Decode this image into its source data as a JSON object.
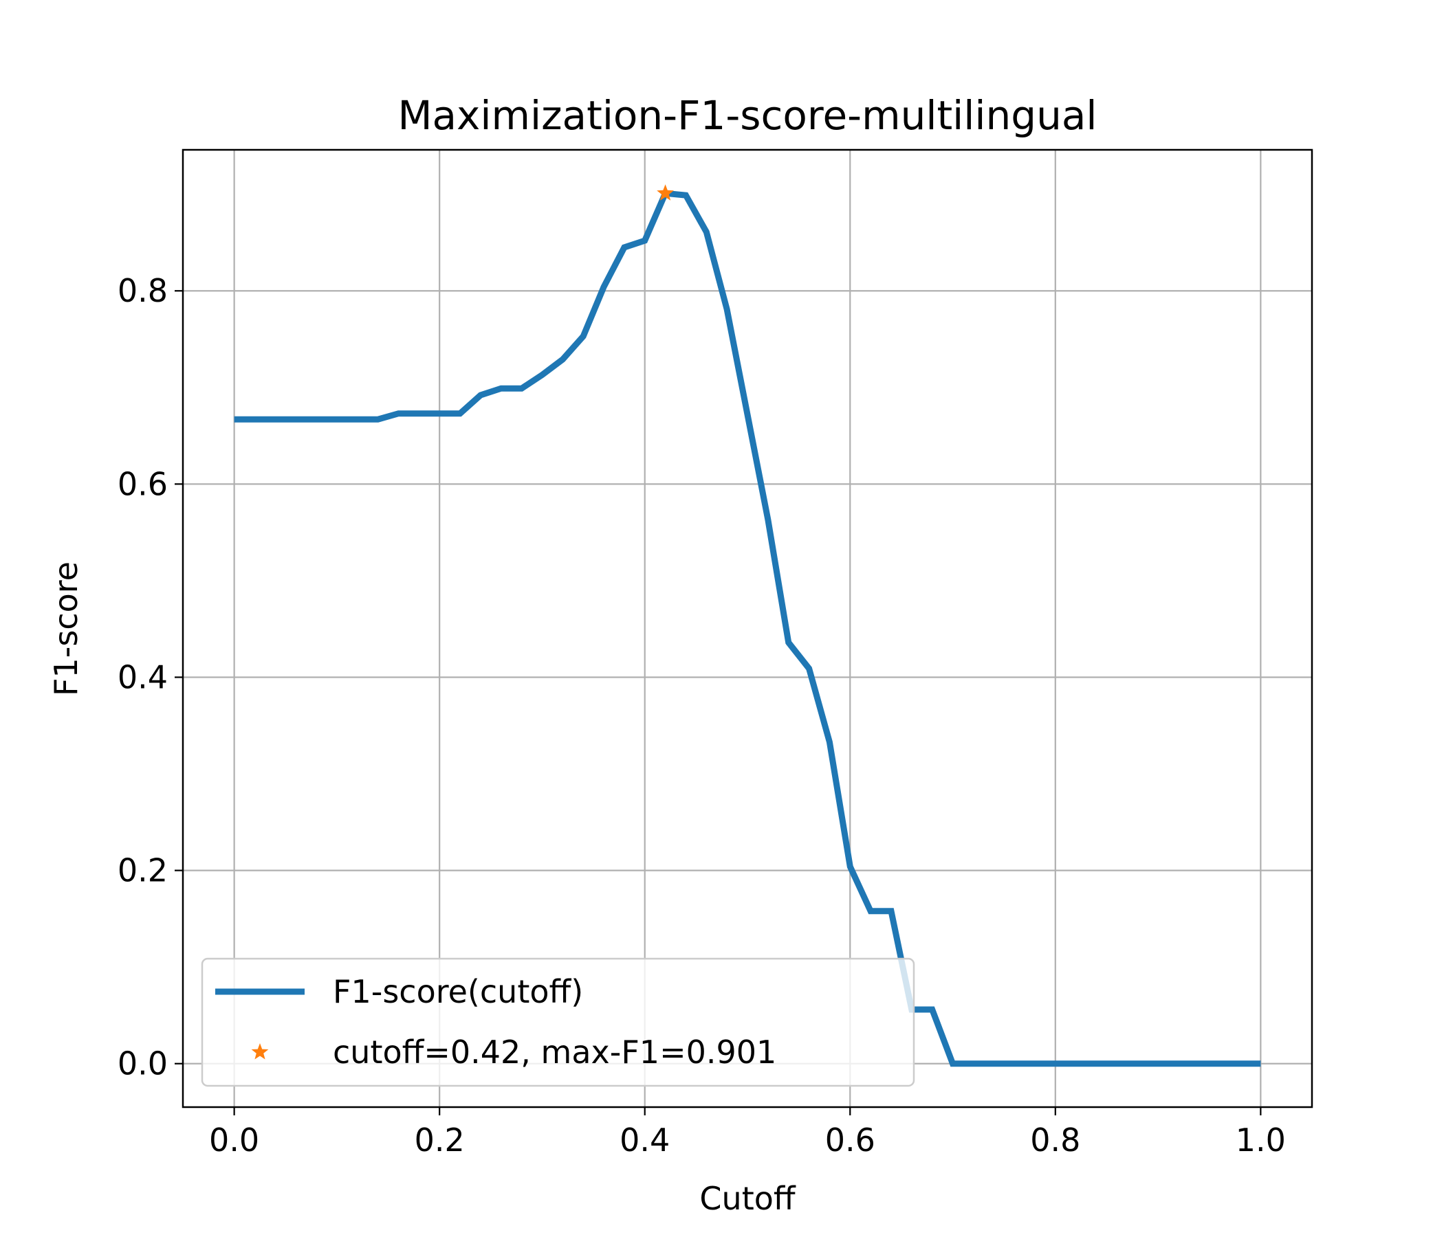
{
  "chart_data": {
    "type": "line",
    "title": "Maximization-F1-score-multilingual",
    "xlabel": "Cutoff",
    "ylabel": "F1-score",
    "xlim": [
      -0.05,
      1.05
    ],
    "ylim": [
      -0.045,
      0.946
    ],
    "xticks": [
      0.0,
      0.2,
      0.4,
      0.6,
      0.8,
      1.0
    ],
    "xtick_labels": [
      "0.0",
      "0.2",
      "0.4",
      "0.6",
      "0.8",
      "1.0"
    ],
    "yticks": [
      0.0,
      0.2,
      0.4,
      0.6,
      0.8
    ],
    "ytick_labels": [
      "0.0",
      "0.2",
      "0.4",
      "0.6",
      "0.8"
    ],
    "grid": true,
    "legend_position": "lower-left",
    "series": [
      {
        "name": "F1-score(cutoff)",
        "color": "#1f77b4",
        "x": [
          0.0,
          0.02,
          0.04,
          0.06,
          0.08,
          0.1,
          0.12,
          0.14,
          0.16,
          0.18,
          0.2,
          0.22,
          0.24,
          0.26,
          0.28,
          0.3,
          0.32,
          0.34,
          0.36,
          0.38,
          0.4,
          0.42,
          0.44,
          0.46,
          0.48,
          0.5,
          0.52,
          0.54,
          0.56,
          0.58,
          0.6,
          0.62,
          0.64,
          0.66,
          0.68,
          0.7,
          0.72,
          0.74,
          0.76,
          0.78,
          0.8,
          0.82,
          0.84,
          0.86,
          0.88,
          0.9,
          0.92,
          0.94,
          0.96,
          0.98,
          1.0
        ],
        "y": [
          0.667,
          0.667,
          0.667,
          0.667,
          0.667,
          0.667,
          0.667,
          0.667,
          0.673,
          0.673,
          0.673,
          0.673,
          0.692,
          0.699,
          0.699,
          0.713,
          0.729,
          0.753,
          0.804,
          0.845,
          0.852,
          0.901,
          0.899,
          0.861,
          0.781,
          0.672,
          0.563,
          0.436,
          0.409,
          0.333,
          0.204,
          0.158,
          0.158,
          0.056,
          0.056,
          0.0,
          0.0,
          0.0,
          0.0,
          0.0,
          0.0,
          0.0,
          0.0,
          0.0,
          0.0,
          0.0,
          0.0,
          0.0,
          0.0,
          0.0,
          0.0
        ]
      },
      {
        "name": "cutoff=0.42, max-F1=0.901",
        "color": "#ff7f0e",
        "marker": "star",
        "x": [
          0.42
        ],
        "y": [
          0.901
        ]
      }
    ]
  }
}
